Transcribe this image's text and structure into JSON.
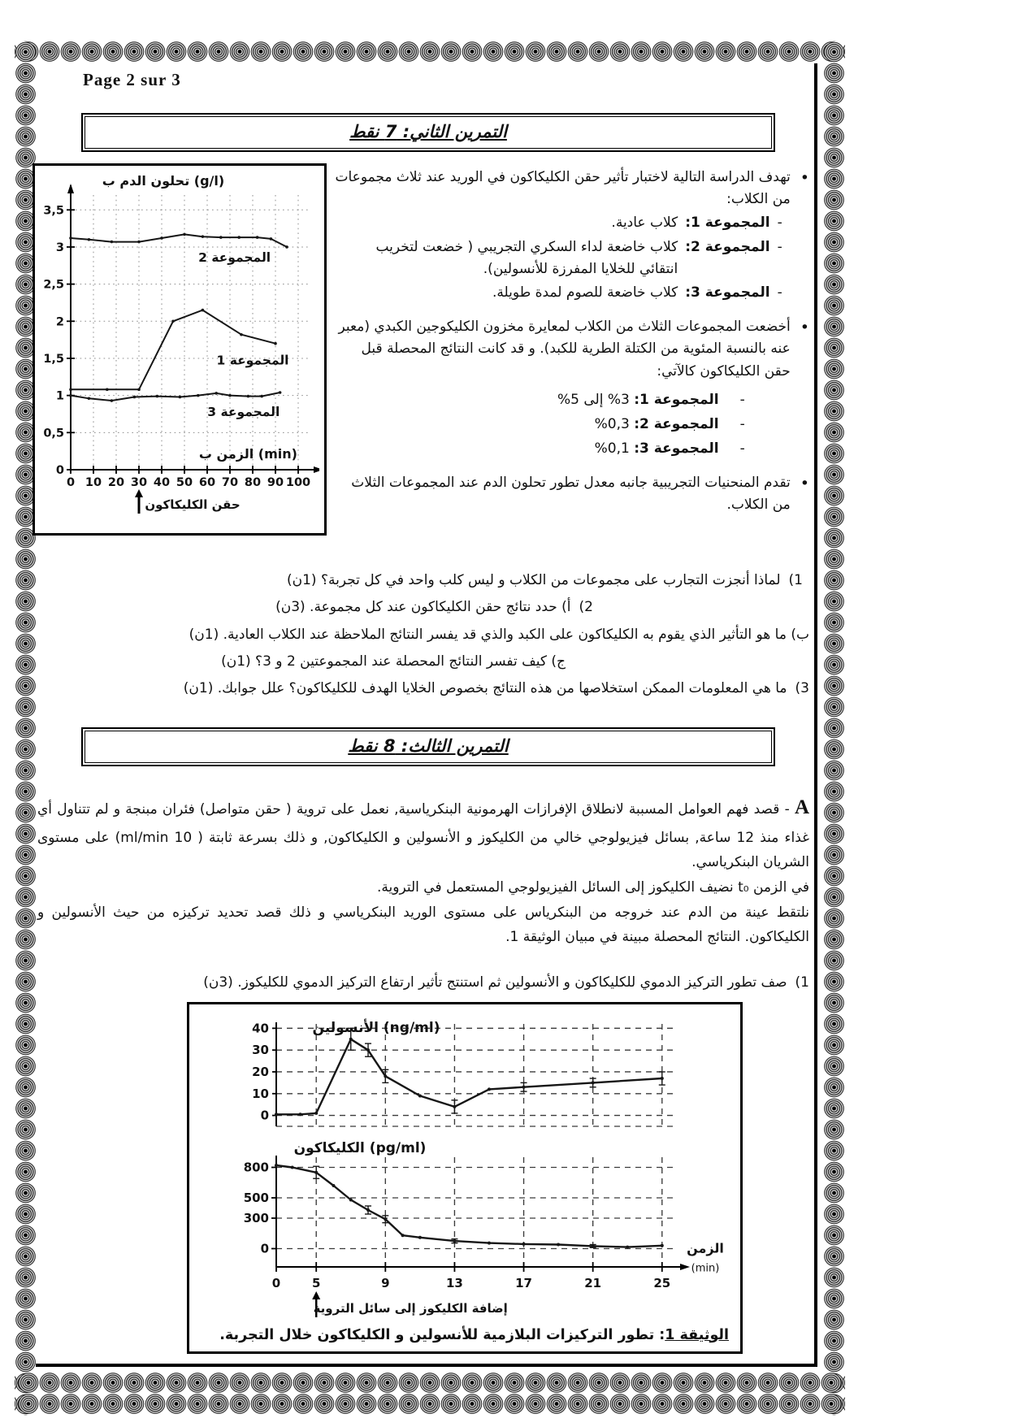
{
  "page": {
    "label": "Page 2 sur 3"
  },
  "exercise2": {
    "title": "التمرين الثاني: 7 نقط",
    "bullet_icon": "•",
    "dash_icon": "-",
    "intro": "تهدف الدراسة التالية لاختبار تأثير حقن الكليكاكون في الوريد عند ثلاث مجموعات من الكلاب:",
    "groups": [
      {
        "label": "المجموعة 1:",
        "desc": "كلاب عادية."
      },
      {
        "label": "المجموعة 2:",
        "desc": "كلاب خاضعة لداء السكري التجريبي ( خضعت لتخريب انتقائي للخلايا المفرزة للأنسولين)."
      },
      {
        "label": "المجموعة 3:",
        "desc": "كلاب خاضعة للصوم لمدة طويلة."
      }
    ],
    "measure_intro": "أخضعت المجموعات الثلاث من الكلاب لمعايرة مخزون الكليكوجين الكبدي (معبر عنه بالنسبة المئوية من الكتلة الطرية للكبد). و قد كانت النتائج المحصلة قبل حقن الكليكاكون كالآتي:",
    "results": [
      {
        "label": "المجموعة 1:",
        "value": "3%  إلى 5%"
      },
      {
        "label": "المجموعة 2:",
        "value": "0,3%"
      },
      {
        "label": "المجموعة 3:",
        "value": "0,1%"
      }
    ],
    "curves_note": "تقدم المنحنيات التجريبية جانبه معدل تطور تحلون الدم عند المجموعات الثلاث من الكلاب.",
    "questions": [
      {
        "num": "1)",
        "text": "لماذا أنجزت التجارب على مجموعات من الكلاب و ليس كلب واحد في كل تجربة؟ (1ن)"
      },
      {
        "num": "2)",
        "text": "أ) حدد نتائج حقن الكليكاكون عند كل مجموعة. (3ن)"
      },
      {
        "num": "",
        "text": "ب) ما هو التأثير الذي يقوم به الكليكاكون على الكبد والذي قد يفسر النتائج الملاحظة عند الكلاب العادية. (1ن)"
      },
      {
        "num": "",
        "text": "ج) كيف تفسر النتائج المحصلة عند المجموعتين 2 و 3؟ (1ن)"
      },
      {
        "num": "3)",
        "text": "ما هي المعلومات الممكن استخلاصها من هذه النتائج بخصوص الخلايا الهدف للكليكاكون؟ علل جوابك. (1ن)"
      }
    ]
  },
  "exercise3": {
    "title": "التمرين الثالث: 8 نقط",
    "part_label": "A",
    "para1": "- قصد فهم العوامل المسببة لانطلاق الإفرازات الهرمونية البنكرياسية, نعمل على تروية ( حقن متواصل) فئران مبنجة و لم تتناول أي غذاء منذ 12 ساعة, بسائل فيزيولوجي خالي من الكليكوز و الأنسولين و الكليكاكون, و ذلك بسرعة ثابتة ( 10 ml/min) على مستوى الشريان البنكرياسي.",
    "para2": "في الزمن t₀ نضيف الكليكوز إلى السائل الفيزيولوجي المستعمل في التروية.",
    "para3": "نلتقط عينة من الدم عند خروجه من البنكرياس على مستوى الوريد البنكرياسي و ذلك قصد تحديد تركيزه من حيث الأنسولين و الكليكاكون. النتائج المحصلة مبينة في مبيان الوثيقة 1.",
    "question1": {
      "num": "1)",
      "text": "صف تطور التركيز الدموي للكليكاكون و الأنسولين ثم استنتج تأثير ارتفاع التركيز الدموي للكليكوز. (3ن)"
    },
    "figure": {
      "caption_title": "الوثيقة 1",
      "caption_text": ": تطور التركيزات البلازمية للأنسولين و الكليكاكون خلال التجربة."
    }
  },
  "chart_data": [
    {
      "id": "glycemia",
      "type": "line",
      "title": "تطور تحلون الدم عند المجموعات الثلاث",
      "ylabel": "تحلون الدم ب (g/l)",
      "xlabel": "الزمن ب (min)",
      "xlim": [
        0,
        105
      ],
      "ylim": [
        0,
        3.7
      ],
      "xticks": [
        0,
        10,
        20,
        30,
        40,
        50,
        60,
        70,
        80,
        90,
        100
      ],
      "xtick_labels": [
        "0",
        "10",
        "20",
        "30",
        "40",
        "50",
        "60",
        "70",
        "80",
        "90",
        "100"
      ],
      "yticks": [
        0,
        0.5,
        1,
        1.5,
        2,
        2.5,
        3,
        3.5
      ],
      "ytick_labels": [
        "0",
        "0,5",
        "1",
        "1,5",
        "2",
        "2,5",
        "3",
        "3,5"
      ],
      "grid": "dotted",
      "annotation": {
        "x": 30,
        "label": "حقن الكليكاكون"
      },
      "series": [
        {
          "name": "المجموعة 2",
          "label_at": [
            72,
            2.8
          ],
          "points": [
            [
              0,
              3.12
            ],
            [
              8,
              3.1
            ],
            [
              18,
              3.07
            ],
            [
              30,
              3.07
            ],
            [
              40,
              3.12
            ],
            [
              50,
              3.17
            ],
            [
              58,
              3.14
            ],
            [
              66,
              3.13
            ],
            [
              74,
              3.13
            ],
            [
              82,
              3.13
            ],
            [
              88,
              3.11
            ],
            [
              95,
              3.0
            ]
          ]
        },
        {
          "name": "المجموعة 1",
          "label_at": [
            80,
            1.42
          ],
          "points": [
            [
              0,
              1.08
            ],
            [
              16,
              1.08
            ],
            [
              30,
              1.08
            ],
            [
              45,
              2.0
            ],
            [
              58,
              2.15
            ],
            [
              75,
              1.82
            ],
            [
              90,
              1.7
            ]
          ]
        },
        {
          "name": "المجموعة 3",
          "label_at": [
            76,
            0.72
          ],
          "points": [
            [
              0,
              1.0
            ],
            [
              8,
              0.96
            ],
            [
              18,
              0.93
            ],
            [
              28,
              0.98
            ],
            [
              38,
              0.99
            ],
            [
              48,
              0.98
            ],
            [
              56,
              1.0
            ],
            [
              64,
              1.03
            ],
            [
              70,
              1.0
            ],
            [
              78,
              0.99
            ],
            [
              84,
              0.99
            ],
            [
              92,
              1.04
            ]
          ]
        }
      ]
    },
    {
      "id": "insulin",
      "type": "line",
      "ylabel": "الأنسولين (ng/ml)",
      "xlim": [
        0,
        26.5
      ],
      "ylim": [
        -5,
        42
      ],
      "xticks": [
        0,
        5,
        9,
        13,
        17,
        21,
        25
      ],
      "yticks": [
        0,
        10,
        20,
        30,
        40
      ],
      "ytick_labels": [
        "0",
        "10",
        "20",
        "30",
        "40"
      ],
      "x_anchors": [
        [
          0,
          0
        ],
        [
          5,
          0.1
        ],
        [
          25,
          0.965
        ],
        [
          26.5,
          1
        ]
      ],
      "grid": "dashed",
      "series": [
        {
          "name": "الأنسولين",
          "points": [
            [
              0,
              0.5
            ],
            [
              3,
              0.5
            ],
            [
              5,
              1
            ],
            [
              7,
              35,
              5
            ],
            [
              8,
              30,
              3
            ],
            [
              9,
              18,
              3
            ],
            [
              11,
              9
            ],
            [
              13,
              4,
              3
            ],
            [
              15,
              12
            ],
            [
              17,
              13,
              2
            ],
            [
              21,
              15,
              2
            ],
            [
              25,
              17,
              3
            ]
          ]
        }
      ]
    },
    {
      "id": "glucagon",
      "type": "line",
      "ylabel": "الكليكاكون (pg/ml)",
      "xlabel": "الزمن",
      "xunit": "(min)",
      "xlim": [
        0,
        26.5
      ],
      "ylim": [
        -180,
        900
      ],
      "xticks": [
        0,
        5,
        9,
        13,
        17,
        21,
        25
      ],
      "xtick_labels": [
        "0",
        "5",
        "9",
        "13",
        "17",
        "21",
        "25"
      ],
      "yticks": [
        0,
        300,
        500,
        800
      ],
      "ytick_labels": [
        "0",
        "300",
        "500",
        "800"
      ],
      "x_anchors": [
        [
          0,
          0
        ],
        [
          5,
          0.1
        ],
        [
          25,
          0.965
        ],
        [
          26.5,
          1
        ]
      ],
      "grid": "dashed",
      "annotation": {
        "x": 5,
        "label": "إضافة الكليكوز إلى سائل التروية"
      },
      "series": [
        {
          "name": "الكليكاكون",
          "points": [
            [
              0,
              820
            ],
            [
              2,
              800
            ],
            [
              5,
              750,
              60
            ],
            [
              6,
              620
            ],
            [
              7,
              480
            ],
            [
              8,
              380,
              40
            ],
            [
              9,
              290,
              35
            ],
            [
              10,
              130
            ],
            [
              11,
              110
            ],
            [
              13,
              75,
              20
            ],
            [
              15,
              55
            ],
            [
              17,
              45
            ],
            [
              19,
              40
            ],
            [
              21,
              25,
              15
            ],
            [
              23,
              15
            ],
            [
              25,
              30
            ]
          ]
        }
      ]
    }
  ]
}
